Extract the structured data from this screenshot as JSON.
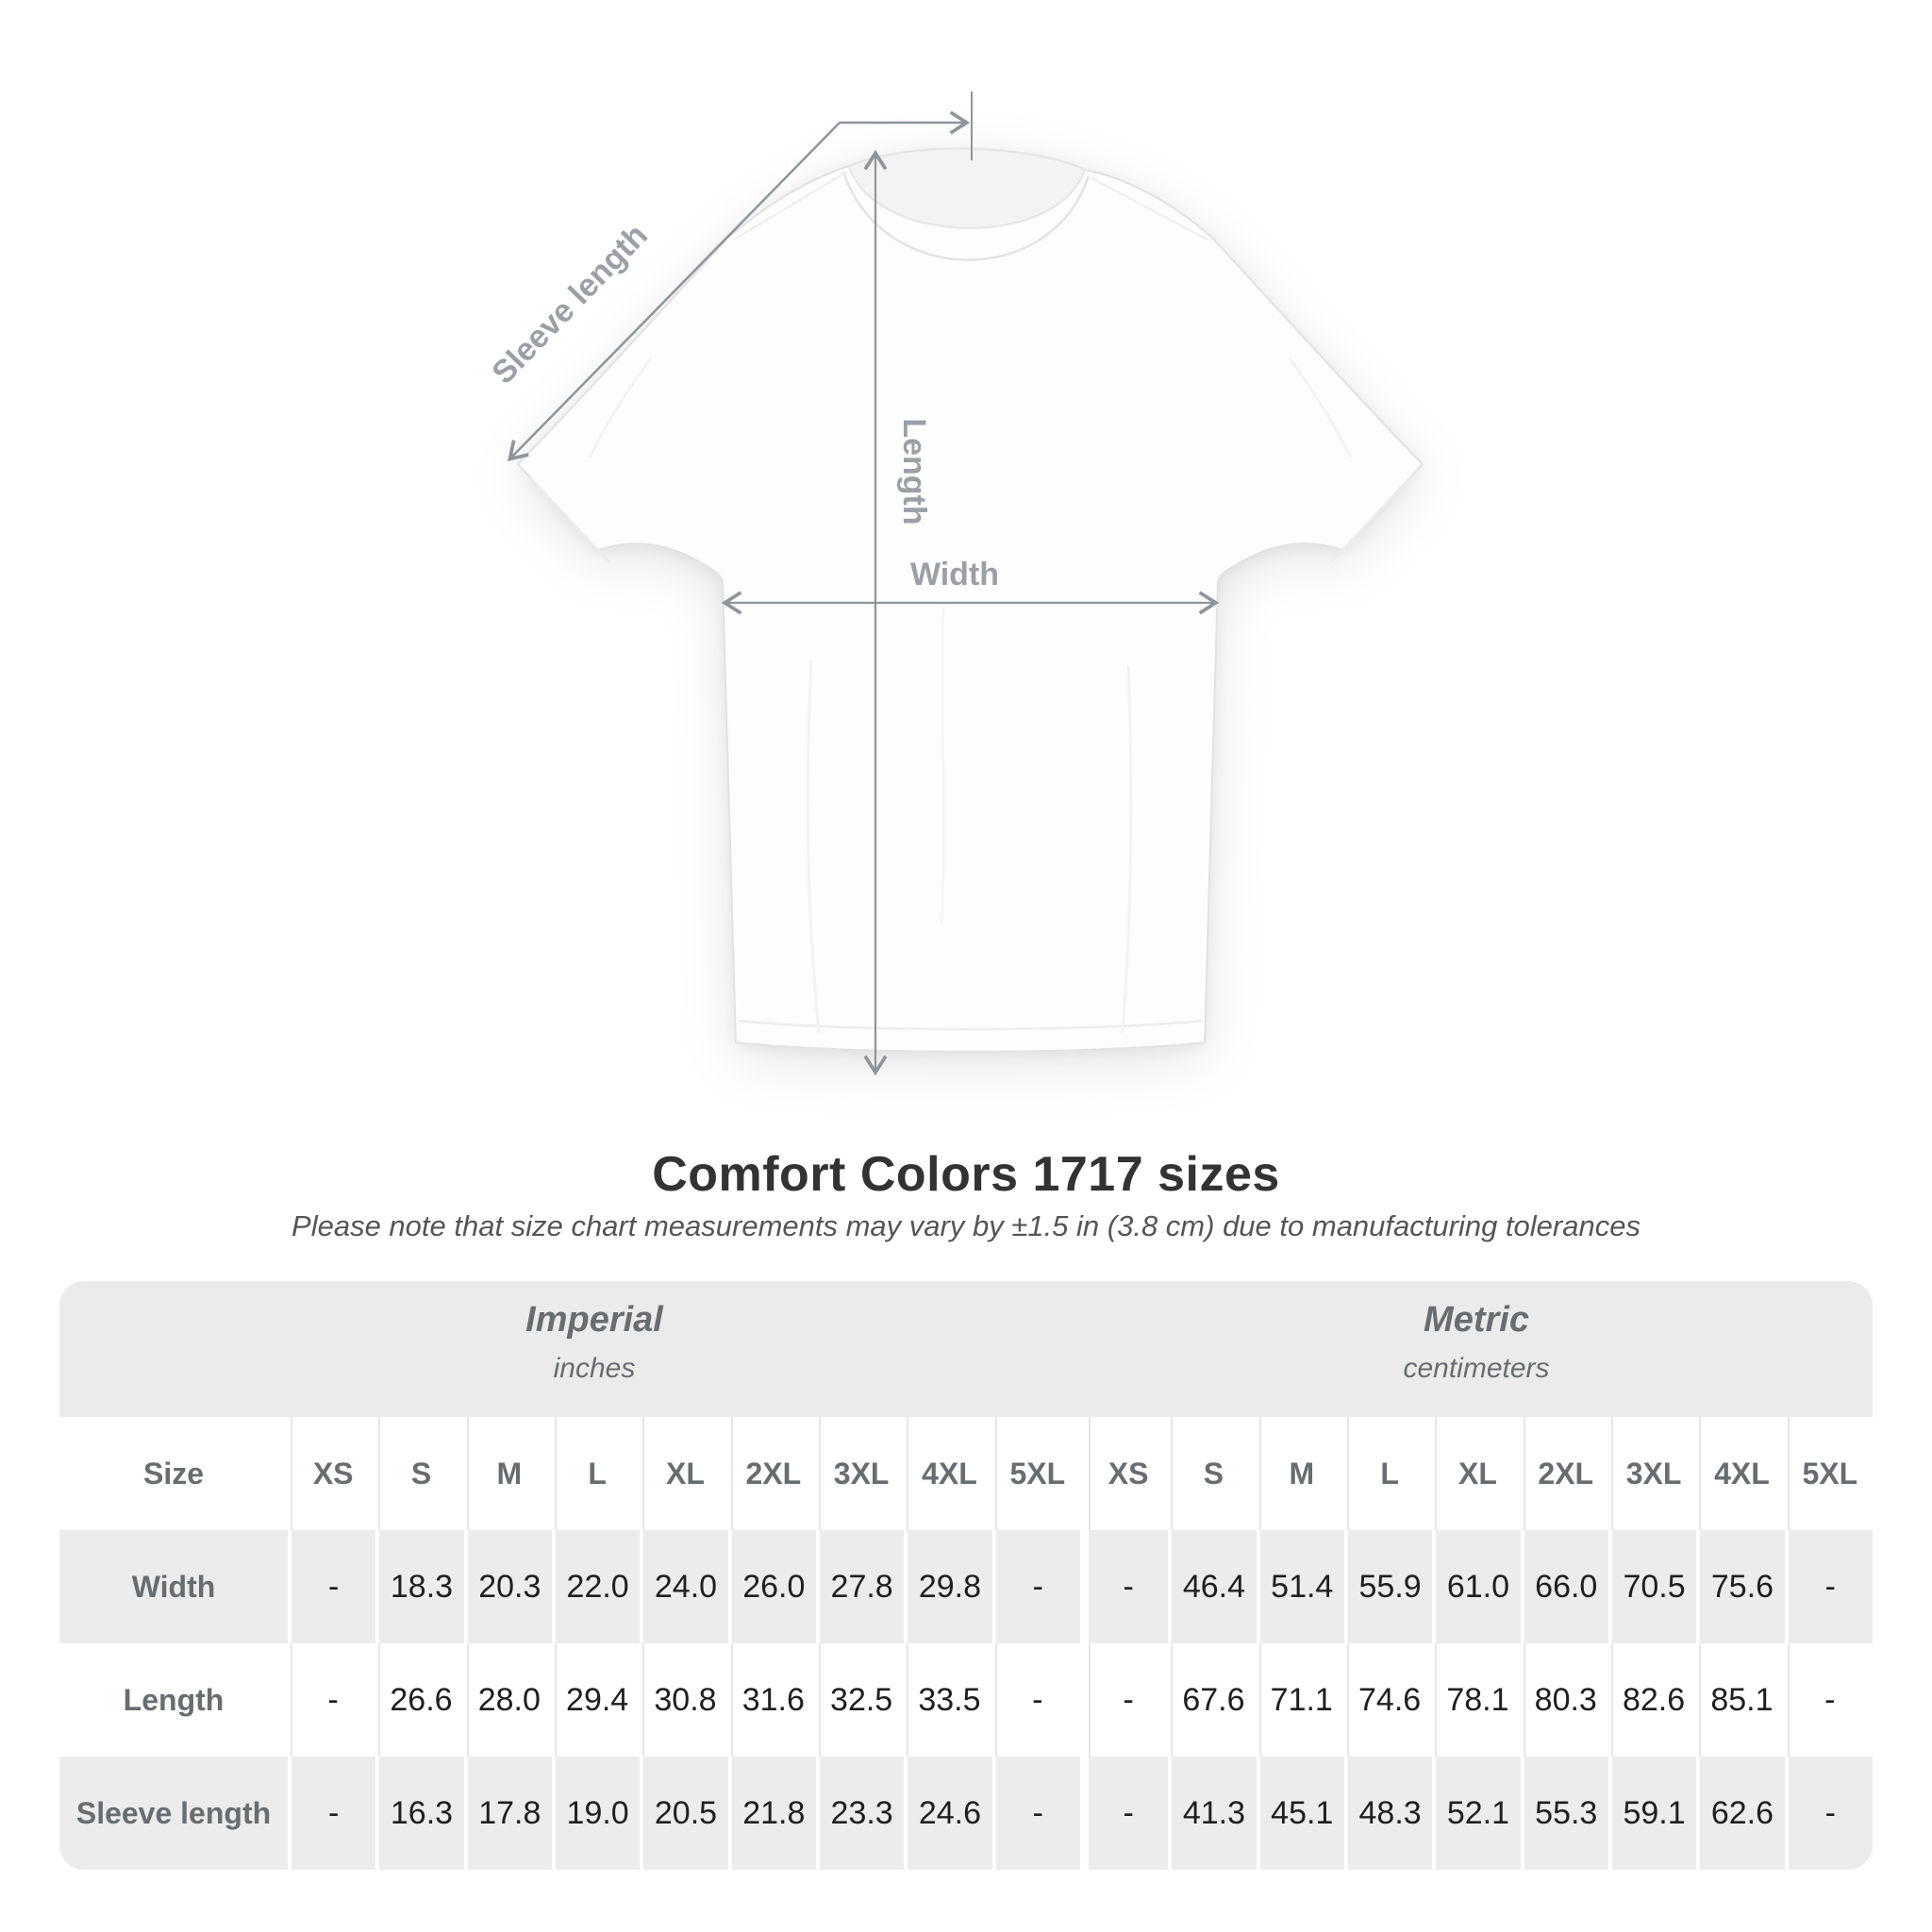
{
  "diagram": {
    "sleeve_label": "Sleeve length",
    "length_label": "Length",
    "width_label": "Width"
  },
  "title": "Comfort Colors 1717 sizes",
  "subtitle": "Please note that size chart measurements may vary by ±1.5 in (3.8 cm) due to manufacturing tolerances",
  "table": {
    "unit_headers": [
      {
        "label": "Imperial",
        "sub": "inches"
      },
      {
        "label": "Metric",
        "sub": "centimeters"
      }
    ],
    "size_header": "Size",
    "sizes": [
      "XS",
      "S",
      "M",
      "L",
      "XL",
      "2XL",
      "3XL",
      "4XL",
      "5XL"
    ],
    "rows": [
      {
        "label": "Width",
        "imperial": [
          "-",
          "18.3",
          "20.3",
          "22.0",
          "24.0",
          "26.0",
          "27.8",
          "29.8",
          "-"
        ],
        "metric": [
          "-",
          "46.4",
          "51.4",
          "55.9",
          "61.0",
          "66.0",
          "70.5",
          "75.6",
          "-"
        ]
      },
      {
        "label": "Length",
        "imperial": [
          "-",
          "26.6",
          "28.0",
          "29.4",
          "30.8",
          "31.6",
          "32.5",
          "33.5",
          "-"
        ],
        "metric": [
          "-",
          "67.6",
          "71.1",
          "74.6",
          "78.1",
          "80.3",
          "82.6",
          "85.1",
          "-"
        ]
      },
      {
        "label": "Sleeve length",
        "imperial": [
          "-",
          "16.3",
          "17.8",
          "19.0",
          "20.5",
          "21.8",
          "23.3",
          "24.6",
          "-"
        ],
        "metric": [
          "-",
          "41.3",
          "45.1",
          "48.3",
          "52.1",
          "55.3",
          "59.1",
          "62.6",
          "-"
        ]
      }
    ]
  },
  "colors": {
    "band_grey": "#ebebeb",
    "row_grey": "#ececec",
    "header_text": "#676d71",
    "value_text": "#1f1f1f",
    "diagram_line": "#8e969b",
    "diagram_label": "#9aa0a5",
    "title_text": "#333333"
  }
}
